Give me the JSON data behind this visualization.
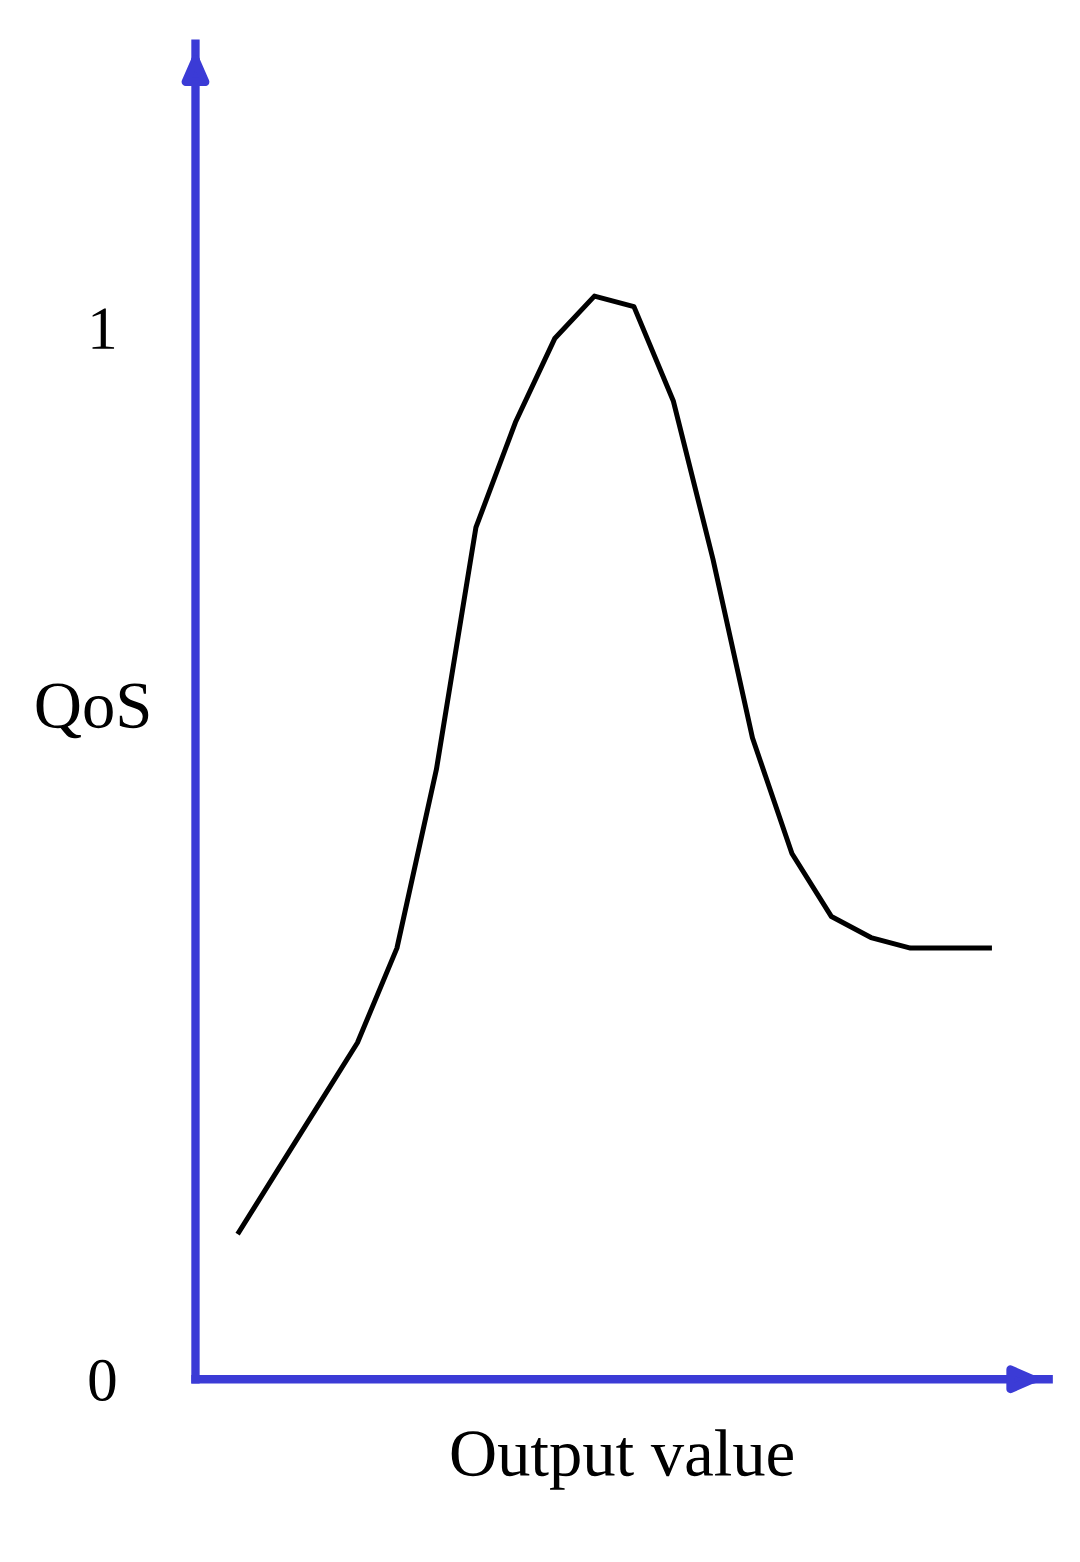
{
  "chart_data": {
    "type": "line",
    "xlabel": "Output value",
    "ylabel": "QoS",
    "categories": [
      null,
      null,
      null,
      null,
      null,
      null,
      null,
      null,
      null,
      null,
      null,
      null,
      null,
      null,
      null,
      null,
      null,
      null,
      null,
      null
    ],
    "series": [
      {
        "color": "#000000",
        "values": [
          0.14,
          0.2,
          0.26,
          0.32,
          0.41,
          0.58,
          0.81,
          0.91,
          0.99,
          1.03,
          1.02,
          0.93,
          0.78,
          0.61,
          0.5,
          0.44,
          0.42,
          0.41,
          0.41,
          0.41
        ]
      }
    ],
    "ylim": [
      0,
      1.27
    ],
    "yticks": [
      0,
      1
    ],
    "grid": false,
    "legend": false,
    "marker": "none",
    "line_style": "solid",
    "tick_labels": "y"
  }
}
